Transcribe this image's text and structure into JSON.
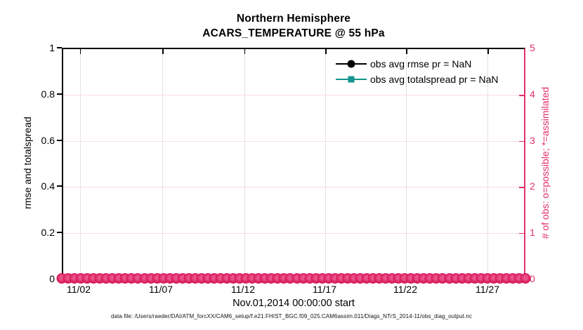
{
  "title": {
    "line1": "Northern Hemisphere",
    "line2": "ACARS_TEMPERATURE @ 55 hPa"
  },
  "axes": {
    "left": {
      "label": "rmse and totalspread",
      "ticks": [
        "1",
        "0.8",
        "0.6",
        "0.4",
        "0.2",
        "0"
      ]
    },
    "right": {
      "label": "# of obs: o=possible; *=assimilated",
      "ticks": [
        "5",
        "4",
        "3",
        "2",
        "1",
        "0"
      ]
    },
    "x": {
      "label": "Nov.01,2014 00:00:00 start",
      "ticks": [
        "11/02",
        "11/07",
        "11/12",
        "11/17",
        "11/22",
        "11/27"
      ]
    }
  },
  "legend": {
    "items": [
      {
        "label": "obs avg rmse pr = NaN",
        "marker": "filled-circle",
        "color": "#000000"
      },
      {
        "label": "obs avg totalspread pr = NaN",
        "marker": "filled-square",
        "color": "#12948C"
      }
    ]
  },
  "footer": {
    "datafile": "data file: /Users/raeder/DAI/ATM_forcXX/CAM6_setup/f.e21.FHIST_BGC.f09_025.CAM6assim.011/Diags_NTrS_2014-11/obs_diag_output.nc"
  },
  "colors": {
    "pink": "#E2306C",
    "band": "#DC2160",
    "teal": "#12948C",
    "grid_vertical": "#E4E0E4",
    "grid_horizontal": "#F7DFE9"
  },
  "chart_data": {
    "type": "line",
    "title": "Northern Hemisphere",
    "subtitle": "ACARS_TEMPERATURE @ 55 hPa",
    "xlabel": "Nov.01,2014 00:00:00 start",
    "x_ticklabels": [
      "11/02",
      "11/07",
      "11/12",
      "11/17",
      "11/22",
      "11/27"
    ],
    "x_range_note": "daily times for November 2014, starting Nov.01,2014 00:00:00",
    "left_axis": {
      "label": "rmse and totalspread",
      "range": [
        0,
        1
      ],
      "ticks": [
        0,
        0.2,
        0.4,
        0.6,
        0.8,
        1
      ]
    },
    "right_axis": {
      "label": "# of obs: o=possible; *=assimilated",
      "range": [
        0,
        5
      ],
      "ticks": [
        0,
        1,
        2,
        3,
        4,
        5
      ]
    },
    "grid": true,
    "legend_position": "inside-northeast",
    "series": [
      {
        "name": "obs avg rmse pr = NaN",
        "axis": "left",
        "marker": "filled-circle",
        "color": "#000000",
        "values": "NaN (no curve plotted)"
      },
      {
        "name": "obs avg totalspread pr = NaN",
        "axis": "left",
        "marker": "filled-square",
        "color": "#12948C",
        "values": "NaN (no curve plotted)"
      },
      {
        "name": "# of obs possible (o markers)",
        "axis": "right",
        "marker": "open-circle",
        "color": "#DC2160",
        "value_at_all_times": 0,
        "rendered_count": 74
      }
    ]
  }
}
